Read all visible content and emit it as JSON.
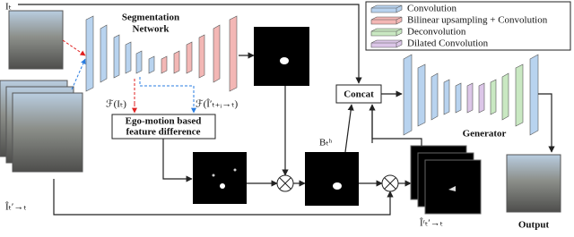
{
  "labels": {
    "input_frame": "Iₜ",
    "segmentation_network": [
      "Segmentation",
      "Network"
    ],
    "feature_current": "ℱ(Iₜ)",
    "feature_warped": "ℱ(Î′ₜ₊ᵢ→ₜ)",
    "ego_motion": [
      "Ego-motion based",
      "feature difference"
    ],
    "concat": "Concat",
    "mask": "Bₜʰ",
    "generator": "Generator",
    "output": "Output",
    "warped_frames": "Îₜ′→ₜ",
    "masked_frames": "Îʳₜ′→ₜ"
  },
  "legend": [
    "Convolution",
    "Bilinear upsampling + Convolution",
    "Deconvolution",
    "Dilated Convolution"
  ]
}
